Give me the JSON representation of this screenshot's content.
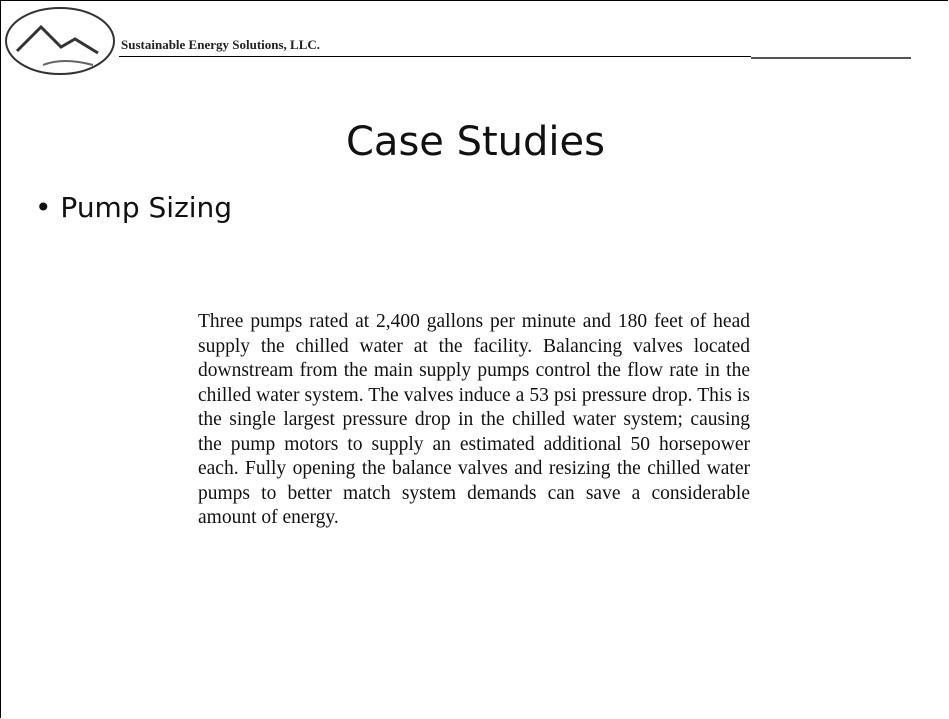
{
  "header": {
    "company": "Sustainable Energy Solutions, LLC."
  },
  "title": "Case Studies",
  "bullet": "Pump Sizing",
  "body": "Three pumps rated at 2,400 gallons per minute and 180 feet of head supply the chilled water at the facility. Balancing valves located downstream from the main supply pumps control the flow rate in the chilled water system. The valves induce a 53 psi pressure drop. This is the single largest pressure drop in the chilled water system; causing the pump motors to supply an estimated additional 50 horsepower each.  Fully opening the balance valves and resizing the chilled water pumps to better match system demands can save a considerable amount of energy."
}
